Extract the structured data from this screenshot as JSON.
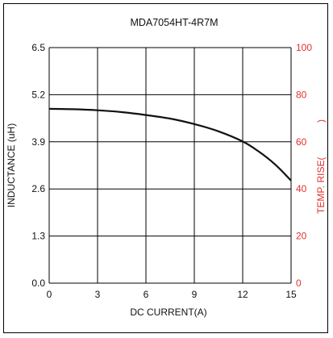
{
  "chart_data": {
    "type": "line",
    "title": "MDA7054HT-4R7M",
    "xlabel": "DC CURRENT(A)",
    "ylabel": "INDUCTANCE (uH)",
    "y2label": "TEMP. RISE(",
    "y2label_close": ")",
    "xlim": [
      0,
      15
    ],
    "ylim": [
      0.0,
      6.5
    ],
    "y2lim": [
      0,
      100
    ],
    "x_ticks": [
      "0",
      "3",
      "6",
      "9",
      "12",
      "15"
    ],
    "y_ticks": [
      "0.0",
      "1.3",
      "2.6",
      "3.9",
      "5.2",
      "6.5"
    ],
    "y2_ticks": [
      "0",
      "20",
      "40",
      "60",
      "80",
      "100"
    ],
    "grid": true,
    "series": [
      {
        "axis": "left",
        "x": [
          0,
          1.5,
          3,
          4.5,
          6,
          7.5,
          9,
          10.5,
          12,
          13,
          14,
          15
        ],
        "y": [
          4.81,
          4.8,
          4.77,
          4.72,
          4.64,
          4.54,
          4.39,
          4.19,
          3.91,
          3.63,
          3.28,
          2.83
        ]
      }
    ],
    "colors": {
      "line": "#111111",
      "grid": "#000000",
      "secondary_axis": "#e3312d"
    }
  }
}
